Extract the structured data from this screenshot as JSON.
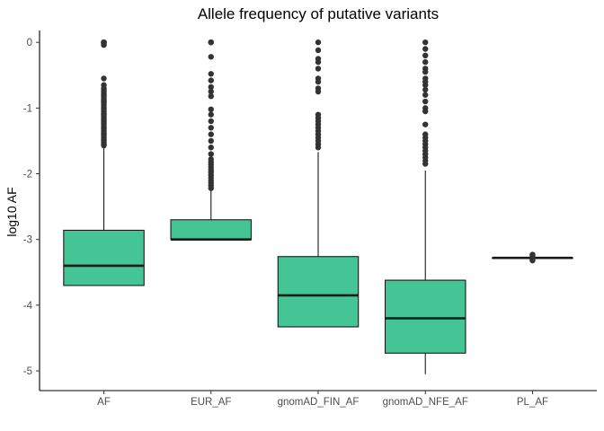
{
  "chart_data": {
    "type": "boxplot",
    "title": "Allele frequency of putative variants",
    "xlabel": "",
    "ylabel": "log10 AF",
    "ylim": [
      -5.3,
      0.18
    ],
    "yticks": [
      0,
      -1,
      -2,
      -3,
      -4,
      -5
    ],
    "ytick_labels": [
      "0",
      "-1",
      "-2",
      "-3",
      "-4",
      "-5"
    ],
    "grid": false,
    "legend": "none",
    "fill_color": "#45c495",
    "categories": [
      "AF",
      "EUR_AF",
      "gnomAD_FIN_AF",
      "gnomAD_NFE_AF",
      "PL_AF"
    ],
    "boxes": [
      {
        "category": "AF",
        "whisker_low": -3.7,
        "q1": -3.7,
        "median": -3.4,
        "q3": -2.86,
        "whisker_high": -1.6,
        "outliers": [
          0,
          0,
          0,
          0,
          0,
          -0.02,
          -0.04,
          -0.55,
          -0.65,
          -0.7,
          -0.72,
          -0.75,
          -0.78,
          -0.8,
          -0.82,
          -0.85,
          -0.88,
          -0.9,
          -0.92,
          -0.95,
          -0.98,
          -1.0,
          -1.02,
          -1.05,
          -1.08,
          -1.1,
          -1.12,
          -1.15,
          -1.18,
          -1.2,
          -1.22,
          -1.25,
          -1.28,
          -1.3,
          -1.32,
          -1.35,
          -1.38,
          -1.4,
          -1.42,
          -1.45,
          -1.48,
          -1.5,
          -1.52,
          -1.55,
          -1.57
        ]
      },
      {
        "category": "EUR_AF",
        "whisker_low": -3.0,
        "q1": -3.0,
        "median": -3.0,
        "q3": -2.7,
        "whisker_high": -2.25,
        "outliers": [
          0,
          0,
          0,
          -0.22,
          -0.48,
          -0.58,
          -0.68,
          -0.75,
          -0.82,
          -1.02,
          -1.1,
          -1.2,
          -1.3,
          -1.4,
          -1.5,
          -1.6,
          -1.7,
          -1.78,
          -1.82,
          -1.86,
          -1.9,
          -1.94,
          -1.98,
          -2.02,
          -2.06,
          -2.1,
          -2.14,
          -2.18,
          -2.22
        ]
      },
      {
        "category": "gnomAD_FIN_AF",
        "whisker_low": -4.33,
        "q1": -4.33,
        "median": -3.85,
        "q3": -3.26,
        "whisker_high": -1.67,
        "outliers": [
          0,
          -0.12,
          -0.25,
          -0.3,
          -0.4,
          -0.55,
          -0.6,
          -0.7,
          -0.75,
          -1.1,
          -1.15,
          -1.2,
          -1.25,
          -1.3,
          -1.35,
          -1.4,
          -1.45,
          -1.5,
          -1.55,
          -1.6
        ]
      },
      {
        "category": "gnomAD_NFE_AF",
        "whisker_low": -5.05,
        "q1": -4.73,
        "median": -4.2,
        "q3": -3.62,
        "whisker_high": -1.95,
        "outliers": [
          0,
          -0.1,
          -0.2,
          -0.3,
          -0.4,
          -0.45,
          -0.55,
          -0.6,
          -0.65,
          -0.72,
          -0.8,
          -0.9,
          -1.0,
          -1.05,
          -1.25,
          -1.4,
          -1.45,
          -1.5,
          -1.55,
          -1.6,
          -1.65,
          -1.7,
          -1.75,
          -1.8,
          -1.85
        ]
      },
      {
        "category": "PL_AF",
        "whisker_low": -3.28,
        "q1": -3.28,
        "median": -3.28,
        "q3": -3.28,
        "whisker_high": -3.28,
        "outliers": [
          -3.23,
          -3.25,
          -3.27,
          -3.3,
          -3.32
        ]
      }
    ]
  }
}
